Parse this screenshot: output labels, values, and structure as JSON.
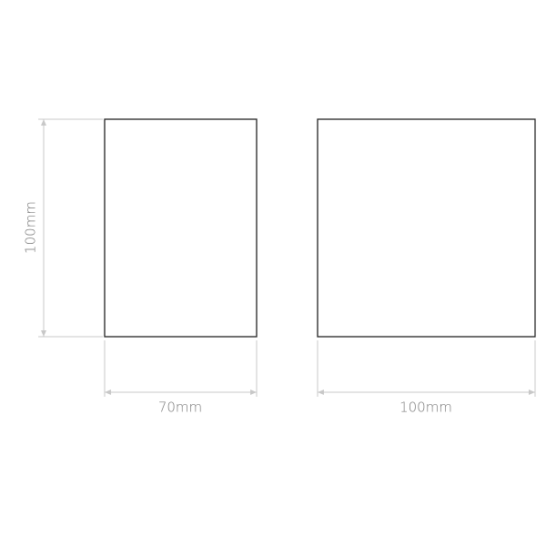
{
  "dimensions": {
    "front_height": "100mm",
    "front_width": "70mm",
    "side_width": "100mm"
  }
}
